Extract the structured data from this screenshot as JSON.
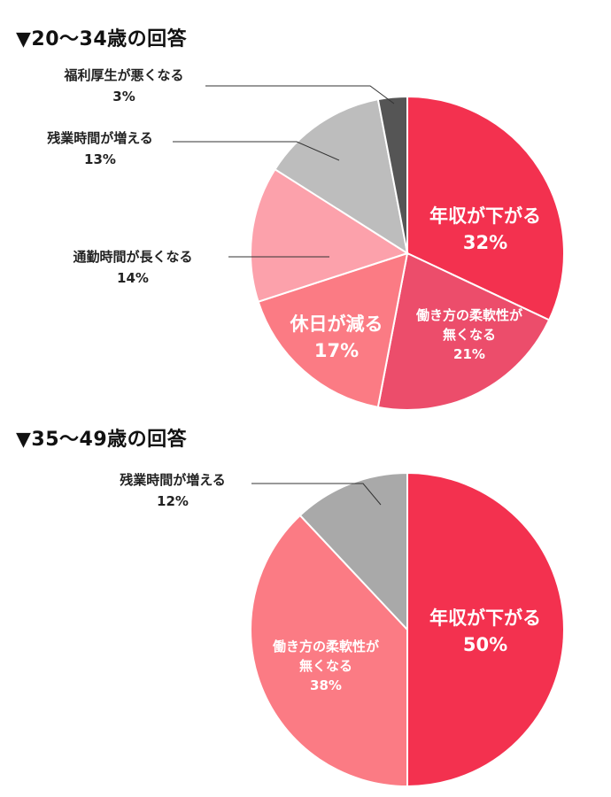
{
  "chart_data": [
    {
      "type": "pie",
      "title": "▼20～34歳の回答",
      "slices": [
        {
          "label": "年収が下がる",
          "value": 32,
          "value_label": "32%",
          "color": "#f3314f"
        },
        {
          "label": "働き方の柔軟性が無くなる",
          "label_lines": [
            "働き方の柔軟性が",
            "無くなる"
          ],
          "value": 21,
          "value_label": "21%",
          "color": "#ec4d6b"
        },
        {
          "label": "休日が減る",
          "value": 17,
          "value_label": "17%",
          "color": "#fb7b84"
        },
        {
          "label": "通勤時間が長くなる",
          "value": 14,
          "value_label": "14%",
          "color": "#fca1ab"
        },
        {
          "label": "残業時間が増える",
          "value": 13,
          "value_label": "13%",
          "color": "#bdbdbd"
        },
        {
          "label": "福利厚生が悪くなる",
          "value": 3,
          "value_label": "3%",
          "color": "#555555"
        }
      ]
    },
    {
      "type": "pie",
      "title": "▼35～49歳の回答",
      "slices": [
        {
          "label": "年収が下がる",
          "value": 50,
          "value_label": "50%",
          "color": "#f3314f"
        },
        {
          "label": "働き方の柔軟性が無くなる",
          "label_lines": [
            "働き方の柔軟性が",
            "無くなる"
          ],
          "value": 38,
          "value_label": "38%",
          "color": "#fb7b84"
        },
        {
          "label": "残業時間が増える",
          "value": 12,
          "value_label": "12%",
          "color": "#a9a9a9"
        }
      ]
    }
  ]
}
